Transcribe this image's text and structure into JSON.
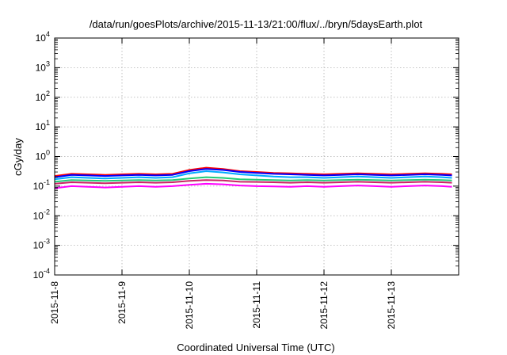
{
  "chart_data": {
    "type": "line",
    "title": "/data/run/goesPlots/archive/2015-11-13/21:00/flux/../bryn/5daysEarth.plot",
    "xlabel": "Coordinated Universal Time (UTC)",
    "ylabel": "cGy/day",
    "yscale": "log",
    "ylim": [
      0.0001,
      10000
    ],
    "xlim": [
      0,
      6
    ],
    "grid": true,
    "y_ticks": [
      {
        "value": 0.0001,
        "base": "10",
        "exp": "-4"
      },
      {
        "value": 0.001,
        "base": "10",
        "exp": "-3"
      },
      {
        "value": 0.01,
        "base": "10",
        "exp": "-2"
      },
      {
        "value": 0.1,
        "base": "10",
        "exp": "-1"
      },
      {
        "value": 1,
        "base": "10",
        "exp": "0"
      },
      {
        "value": 10,
        "base": "10",
        "exp": "1"
      },
      {
        "value": 100,
        "base": "10",
        "exp": "2"
      },
      {
        "value": 1000,
        "base": "10",
        "exp": "3"
      },
      {
        "value": 10000,
        "base": "10",
        "exp": "4"
      }
    ],
    "x_ticks": [
      "2015-11-8",
      "2015-11-9",
      "2015-11-10",
      "2015-11-11",
      "2015-11-12",
      "2015-11-13"
    ],
    "x": [
      0,
      0.25,
      0.5,
      0.75,
      1,
      1.25,
      1.5,
      1.75,
      2,
      2.25,
      2.5,
      2.75,
      3,
      3.25,
      3.5,
      3.75,
      4,
      4.25,
      4.5,
      4.75,
      5,
      5.25,
      5.5,
      5.75,
      5.9
    ],
    "series": [
      {
        "color": "#ff0000",
        "values": [
          0.22,
          0.26,
          0.25,
          0.24,
          0.25,
          0.26,
          0.25,
          0.26,
          0.35,
          0.42,
          0.38,
          0.32,
          0.3,
          0.28,
          0.27,
          0.26,
          0.25,
          0.26,
          0.27,
          0.26,
          0.25,
          0.26,
          0.27,
          0.26,
          0.25
        ]
      },
      {
        "color": "#0000ff",
        "values": [
          0.2,
          0.24,
          0.23,
          0.22,
          0.23,
          0.24,
          0.23,
          0.24,
          0.32,
          0.38,
          0.35,
          0.3,
          0.28,
          0.26,
          0.25,
          0.24,
          0.23,
          0.24,
          0.25,
          0.24,
          0.23,
          0.24,
          0.25,
          0.24,
          0.23
        ]
      },
      {
        "color": "#00aaff",
        "values": [
          0.17,
          0.2,
          0.19,
          0.18,
          0.19,
          0.2,
          0.19,
          0.2,
          0.27,
          0.32,
          0.29,
          0.25,
          0.23,
          0.21,
          0.2,
          0.2,
          0.19,
          0.2,
          0.21,
          0.2,
          0.19,
          0.2,
          0.21,
          0.2,
          0.19
        ]
      },
      {
        "color": "#22cc77",
        "values": [
          0.14,
          0.16,
          0.155,
          0.15,
          0.155,
          0.16,
          0.155,
          0.16,
          0.18,
          0.2,
          0.19,
          0.17,
          0.165,
          0.16,
          0.155,
          0.16,
          0.155,
          0.16,
          0.165,
          0.16,
          0.155,
          0.16,
          0.165,
          0.16,
          0.155
        ]
      },
      {
        "color": "#cc2266",
        "values": [
          0.12,
          0.135,
          0.13,
          0.125,
          0.13,
          0.135,
          0.13,
          0.135,
          0.15,
          0.16,
          0.155,
          0.14,
          0.138,
          0.135,
          0.13,
          0.135,
          0.13,
          0.135,
          0.14,
          0.135,
          0.13,
          0.135,
          0.14,
          0.135,
          0.13
        ]
      },
      {
        "color": "#ff00ff",
        "values": [
          0.085,
          0.1,
          0.095,
          0.09,
          0.095,
          0.1,
          0.095,
          0.1,
          0.11,
          0.12,
          0.115,
          0.105,
          0.1,
          0.098,
          0.095,
          0.1,
          0.095,
          0.1,
          0.105,
          0.1,
          0.095,
          0.1,
          0.105,
          0.1,
          0.095
        ]
      }
    ]
  }
}
